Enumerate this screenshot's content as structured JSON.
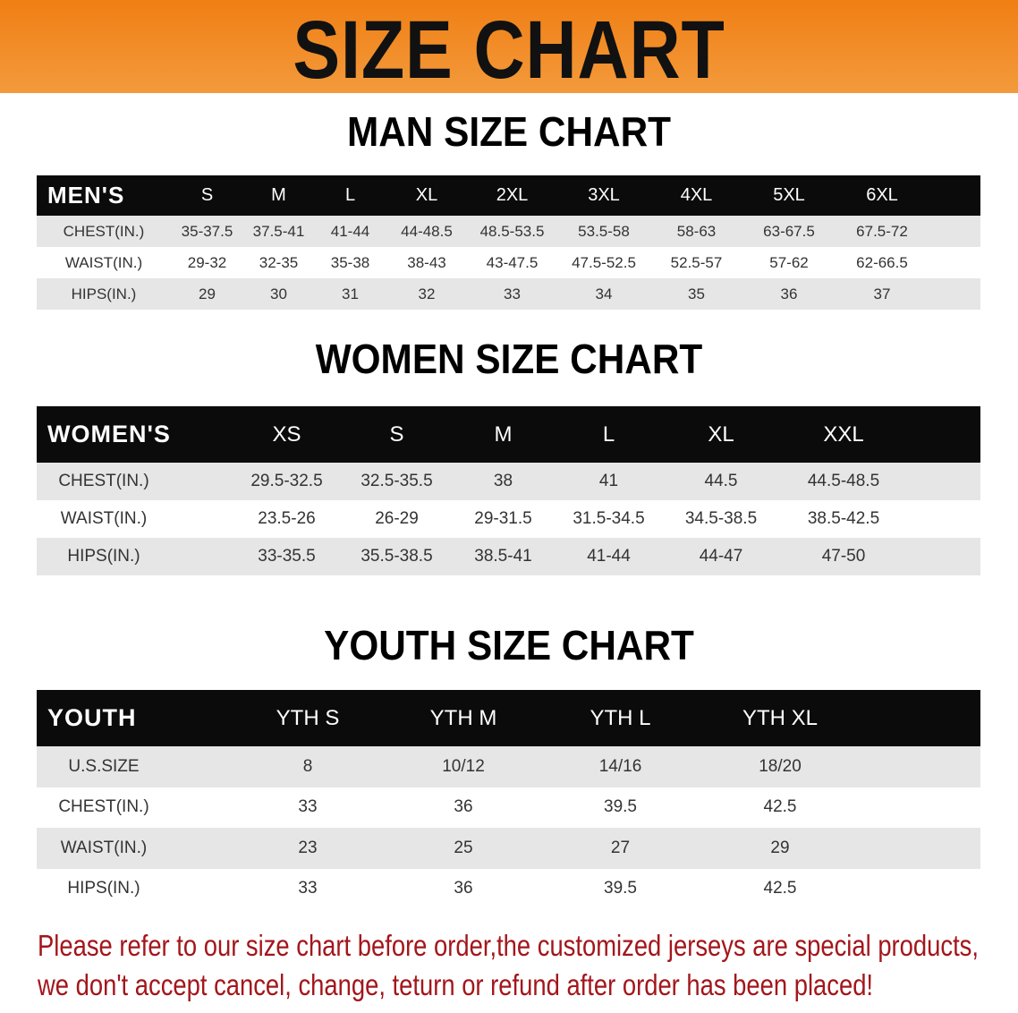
{
  "banner": {
    "title": "SIZE CHART",
    "color": "#f28a26"
  },
  "men": {
    "title": "MAN SIZE CHART",
    "header": [
      "MEN'S",
      "S",
      "M",
      "L",
      "XL",
      "2XL",
      "3XL",
      "4XL",
      "5XL",
      "6XL"
    ],
    "rows": [
      [
        "CHEST(IN.)",
        "35-37.5",
        "37.5-41",
        "41-44",
        "44-48.5",
        "48.5-53.5",
        "53.5-58",
        "58-63",
        "63-67.5",
        "67.5-72"
      ],
      [
        "WAIST(IN.)",
        "29-32",
        "32-35",
        "35-38",
        "38-43",
        "43-47.5",
        "47.5-52.5",
        "52.5-57",
        "57-62",
        "62-66.5"
      ],
      [
        "HIPS(IN.)",
        "29",
        "30",
        "31",
        "32",
        "33",
        "34",
        "35",
        "36",
        "37"
      ]
    ]
  },
  "women": {
    "title": "WOMEN SIZE CHART",
    "header": [
      "WOMEN'S",
      "XS",
      "S",
      "M",
      "L",
      "XL",
      "XXL"
    ],
    "rows": [
      [
        "CHEST(IN.)",
        "29.5-32.5",
        "32.5-35.5",
        "38",
        "41",
        "44.5",
        "44.5-48.5"
      ],
      [
        "WAIST(IN.)",
        "23.5-26",
        "26-29",
        "29-31.5",
        "31.5-34.5",
        "34.5-38.5",
        "38.5-42.5"
      ],
      [
        "HIPS(IN.)",
        "33-35.5",
        "35.5-38.5",
        "38.5-41",
        "41-44",
        "44-47",
        "47-50"
      ]
    ]
  },
  "youth": {
    "title": "YOUTH SIZE CHART",
    "header": [
      "YOUTH",
      "YTH S",
      "YTH M",
      "YTH L",
      "YTH XL"
    ],
    "rows": [
      [
        "U.S.SIZE",
        "8",
        "10/12",
        "14/16",
        "18/20"
      ],
      [
        "CHEST(IN.)",
        "33",
        "36",
        "39.5",
        "42.5"
      ],
      [
        "WAIST(IN.)",
        "23",
        "25",
        "27",
        "29"
      ],
      [
        "HIPS(IN.)",
        "33",
        "36",
        "39.5",
        "42.5"
      ]
    ]
  },
  "notice": {
    "line1": "Please refer to our size chart before order,the customized jerseys are special products,",
    "line2": "we don't accept cancel, change, teturn or refund after order has been placed!",
    "color": "#a3161b"
  }
}
